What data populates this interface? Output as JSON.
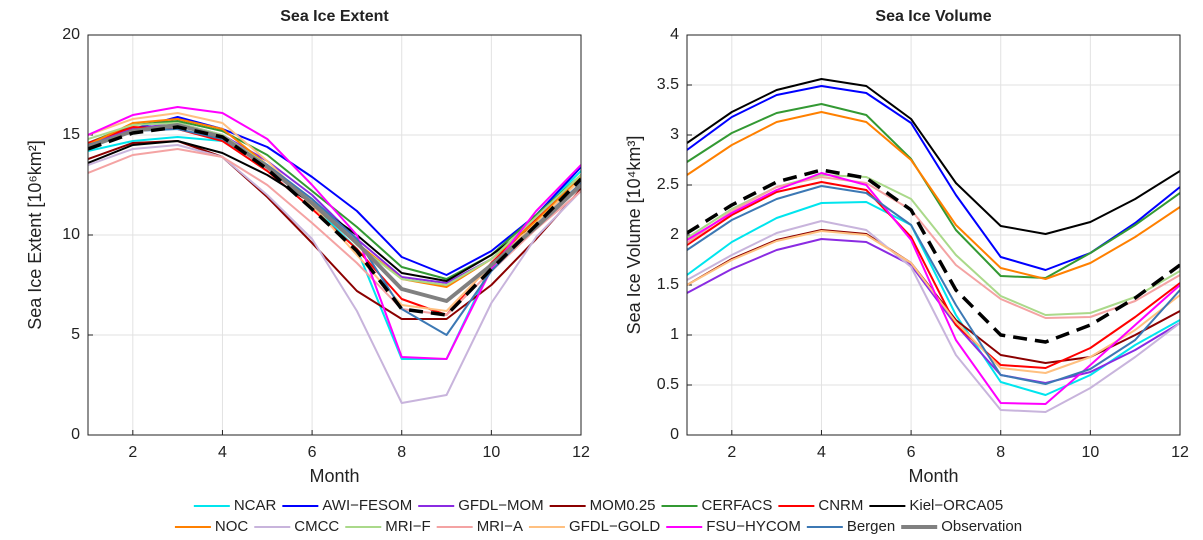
{
  "chart_data": [
    {
      "type": "line",
      "title": "Sea Ice Extent",
      "xlabel": "Month",
      "ylabel": "Sea Ice Extent  [10⁶km²]",
      "x": [
        1,
        2,
        3,
        4,
        5,
        6,
        7,
        8,
        9,
        10,
        11,
        12
      ],
      "xlim": [
        1,
        12
      ],
      "xticks": [
        2,
        4,
        6,
        8,
        10,
        12
      ],
      "ylim": [
        0,
        20
      ],
      "yticks": [
        0,
        5,
        10,
        15,
        20
      ],
      "grid": true,
      "series": [
        {
          "name": "NCAR",
          "color": "#00e5ee",
          "values": [
            14.2,
            14.7,
            14.9,
            14.7,
            13.5,
            11.5,
            9.3,
            3.8,
            3.8,
            8.5,
            11,
            13.2
          ]
        },
        {
          "name": "AWI−FESOM",
          "color": "#0000ff",
          "values": [
            14.3,
            15.3,
            15.9,
            15.3,
            14.4,
            12.9,
            11.2,
            8.9,
            8.0,
            9.2,
            11,
            13.4
          ]
        },
        {
          "name": "GFDL−MOM",
          "color": "#8a2be2",
          "values": [
            14.5,
            15.3,
            15.6,
            15,
            13.7,
            12,
            9.8,
            7.9,
            7.6,
            8.8,
            10.8,
            12.9
          ]
        },
        {
          "name": "MOM0.25",
          "color": "#8b0000",
          "values": [
            13.8,
            14.6,
            14.7,
            13.9,
            11.9,
            9.6,
            7.2,
            5.8,
            5.8,
            7.5,
            9.8,
            12.3
          ]
        },
        {
          "name": "CERFACS",
          "color": "#339933",
          "values": [
            14.6,
            15.5,
            15.7,
            15.2,
            14,
            12.2,
            10.4,
            8.4,
            7.8,
            9,
            11,
            13
          ]
        },
        {
          "name": "CNRM",
          "color": "#ff0000",
          "values": [
            14.6,
            15.4,
            15.3,
            14.7,
            13.2,
            11.3,
            9.3,
            6.8,
            6,
            8.6,
            10.8,
            13
          ]
        },
        {
          "name": "Kiel−ORCA05",
          "color": "#000000",
          "values": [
            13.6,
            14.5,
            14.7,
            14.1,
            13,
            11.6,
            10,
            8.1,
            7.7,
            9,
            10.6,
            12.4
          ]
        },
        {
          "name": "NOC",
          "color": "#ff8000",
          "values": [
            14.5,
            15.6,
            15.8,
            15.3,
            13.5,
            11.5,
            9.6,
            7.8,
            7.4,
            8.8,
            10.7,
            12.9
          ]
        },
        {
          "name": "CMCC",
          "color": "#c8b4dc",
          "values": [
            13.5,
            14.3,
            14.5,
            13.9,
            12,
            9.8,
            6.2,
            1.6,
            2,
            6.6,
            9.9,
            12.2
          ]
        },
        {
          "name": "MRI−F",
          "color": "#aad98a",
          "values": [
            14.8,
            15.5,
            15.6,
            15,
            13.5,
            11.8,
            9.5,
            7.8,
            7.5,
            8.8,
            10.9,
            13
          ]
        },
        {
          "name": "MRI−A",
          "color": "#f4a3a3",
          "values": [
            13.1,
            14,
            14.3,
            13.9,
            12.5,
            10.6,
            8.6,
            6.3,
            6,
            8.2,
            10.3,
            12.2
          ]
        },
        {
          "name": "GFDL−GOLD",
          "color": "#ffc080",
          "values": [
            15,
            15.8,
            16.1,
            15.6,
            13.7,
            11.5,
            9,
            6.5,
            6.2,
            8.5,
            10.6,
            12.8
          ]
        },
        {
          "name": "FSU−HYCOM",
          "color": "#ff00ff",
          "values": [
            15,
            16,
            16.4,
            16.1,
            14.8,
            12.5,
            10,
            3.9,
            3.8,
            8.3,
            11.2,
            13.5
          ]
        },
        {
          "name": "Bergen",
          "color": "#3c78b4",
          "values": [
            14.5,
            15.2,
            15.3,
            14.8,
            13.5,
            11.8,
            9.8,
            6.3,
            5,
            8.2,
            10.5,
            12.6
          ]
        },
        {
          "name": "Observation",
          "color": "#808080",
          "linewidth": 4,
          "values": [
            14.4,
            15.2,
            15.5,
            14.9,
            13.4,
            11.6,
            9.6,
            7.3,
            6.7,
            8.5,
            10.4,
            12.5
          ]
        },
        {
          "color": "#000000",
          "linewidth": 3.5,
          "linestyle": "dashed",
          "values": [
            14.3,
            15.1,
            15.4,
            14.9,
            13.3,
            11.3,
            9.2,
            6.3,
            6,
            8.3,
            10.5,
            12.8
          ]
        }
      ]
    },
    {
      "type": "line",
      "title": "Sea Ice Volume",
      "xlabel": "Month",
      "ylabel": "Sea Ice Volume  [10⁴km³]",
      "x": [
        1,
        2,
        3,
        4,
        5,
        6,
        7,
        8,
        9,
        10,
        11,
        12
      ],
      "xlim": [
        1,
        12
      ],
      "xticks": [
        2,
        4,
        6,
        8,
        10,
        12
      ],
      "ylim": [
        0,
        4
      ],
      "yticks": [
        0,
        0.5,
        1,
        1.5,
        2,
        2.5,
        3,
        3.5,
        4
      ],
      "grid": true,
      "series": [
        {
          "name": "NCAR",
          "color": "#00e5ee",
          "values": [
            1.6,
            1.93,
            2.17,
            2.32,
            2.33,
            2.1,
            1.2,
            0.53,
            0.4,
            0.6,
            0.9,
            1.15
          ]
        },
        {
          "name": "AWI−FESOM",
          "color": "#0000ff",
          "values": [
            2.85,
            3.18,
            3.4,
            3.49,
            3.42,
            3.12,
            2.4,
            1.78,
            1.65,
            1.82,
            2.12,
            2.48
          ]
        },
        {
          "name": "GFDL−MOM",
          "color": "#8a2be2",
          "values": [
            1.42,
            1.66,
            1.85,
            1.96,
            1.93,
            1.7,
            1.1,
            0.6,
            0.52,
            0.63,
            0.85,
            1.12
          ]
        },
        {
          "name": "MOM0.25",
          "color": "#8b0000",
          "values": [
            1.5,
            1.76,
            1.95,
            2.05,
            2.01,
            1.72,
            1.15,
            0.8,
            0.72,
            0.78,
            1.0,
            1.24
          ]
        },
        {
          "name": "CERFACS",
          "color": "#339933",
          "values": [
            2.73,
            3.02,
            3.22,
            3.31,
            3.2,
            2.76,
            2.05,
            1.59,
            1.57,
            1.82,
            2.1,
            2.42
          ]
        },
        {
          "name": "CNRM",
          "color": "#ff0000",
          "values": [
            1.9,
            2.2,
            2.43,
            2.53,
            2.45,
            1.98,
            1.1,
            0.7,
            0.67,
            0.87,
            1.18,
            1.52
          ]
        },
        {
          "name": "Kiel−ORCA05",
          "color": "#000000",
          "values": [
            2.92,
            3.23,
            3.45,
            3.56,
            3.49,
            3.16,
            2.52,
            2.09,
            2.01,
            2.13,
            2.36,
            2.64
          ]
        },
        {
          "name": "NOC",
          "color": "#ff8000",
          "values": [
            2.6,
            2.9,
            3.13,
            3.23,
            3.13,
            2.75,
            2.1,
            1.67,
            1.56,
            1.72,
            1.98,
            2.28
          ]
        },
        {
          "name": "CMCC",
          "color": "#c8b4dc",
          "values": [
            1.55,
            1.8,
            2.02,
            2.14,
            2.05,
            1.68,
            0.8,
            0.25,
            0.23,
            0.47,
            0.78,
            1.12
          ]
        },
        {
          "name": "MRI−F",
          "color": "#aad98a",
          "values": [
            1.97,
            2.26,
            2.48,
            2.6,
            2.58,
            2.36,
            1.8,
            1.39,
            1.2,
            1.22,
            1.38,
            1.64
          ]
        },
        {
          "name": "MRI−A",
          "color": "#f4a3a3",
          "values": [
            1.92,
            2.24,
            2.48,
            2.58,
            2.52,
            2.25,
            1.7,
            1.36,
            1.17,
            1.18,
            1.34,
            1.6
          ]
        },
        {
          "name": "GFDL−GOLD",
          "color": "#ffc080",
          "values": [
            1.5,
            1.75,
            1.94,
            2.04,
            2.0,
            1.72,
            1.13,
            0.67,
            0.62,
            0.78,
            1.05,
            1.4
          ]
        },
        {
          "name": "FSU−HYCOM",
          "color": "#ff00ff",
          "values": [
            1.95,
            2.22,
            2.45,
            2.62,
            2.5,
            1.95,
            0.95,
            0.32,
            0.31,
            0.7,
            1.1,
            1.5
          ]
        },
        {
          "name": "Bergen",
          "color": "#3c78b4",
          "values": [
            1.85,
            2.15,
            2.36,
            2.49,
            2.42,
            2.1,
            1.3,
            0.6,
            0.51,
            0.66,
            0.95,
            1.45
          ]
        },
        {
          "color": "#000000",
          "linewidth": 3.5,
          "linestyle": "dashed",
          "values": [
            2.02,
            2.3,
            2.53,
            2.65,
            2.57,
            2.25,
            1.45,
            1.0,
            0.93,
            1.1,
            1.37,
            1.7
          ]
        }
      ]
    }
  ]
}
